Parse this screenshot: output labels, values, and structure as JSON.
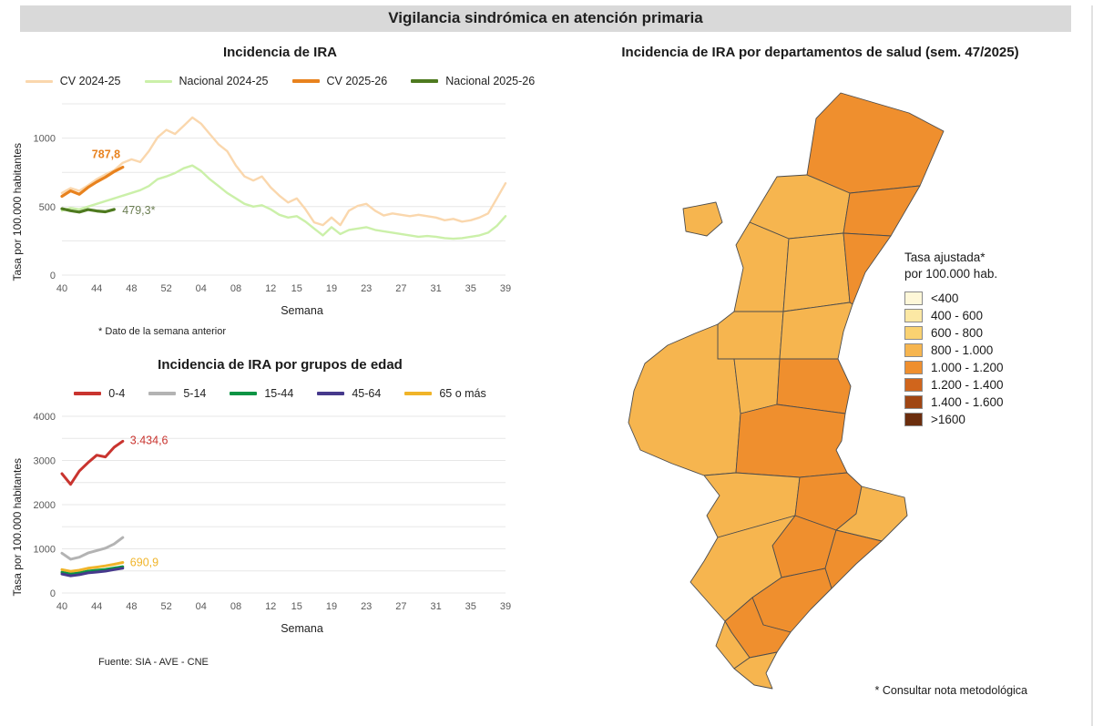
{
  "header": {
    "title": "Vigilancia sindrómica en atención primaria"
  },
  "chart_data": [
    {
      "id": "ira_incidence",
      "type": "line",
      "title": "Incidencia de IRA",
      "xlabel": "Semana",
      "ylabel": "Tasa por 100.000 habitantes",
      "note": "* Dato de la semana anterior",
      "x_ticks": [
        "40",
        "44",
        "48",
        "52",
        "04",
        "08",
        "12",
        "15",
        "19",
        "23",
        "27",
        "31",
        "35",
        "39"
      ],
      "x_tick_positions": [
        0,
        4,
        8,
        12,
        16,
        20,
        24,
        27,
        31,
        35,
        39,
        43,
        47,
        51
      ],
      "n_points": 52,
      "ylim": [
        0,
        1250
      ],
      "y_ticks": [
        0,
        500,
        1000
      ],
      "grid_step": 250,
      "series": [
        {
          "name": "CV 2024-25",
          "color": "#FAD7AD",
          "width": 2.4,
          "values": [
            600,
            635,
            615,
            655,
            700,
            735,
            765,
            820,
            845,
            825,
            905,
            1005,
            1060,
            1030,
            1090,
            1150,
            1105,
            1030,
            955,
            905,
            800,
            720,
            690,
            720,
            640,
            580,
            530,
            560,
            480,
            385,
            365,
            420,
            365,
            470,
            505,
            520,
            470,
            435,
            450,
            440,
            430,
            440,
            430,
            420,
            400,
            410,
            390,
            400,
            420,
            450,
            560,
            670
          ]
        },
        {
          "name": "Nacional 2024-25",
          "color": "#CBF0A9",
          "width": 2.4,
          "values": [
            470,
            490,
            480,
            500,
            520,
            540,
            560,
            580,
            600,
            620,
            650,
            700,
            720,
            745,
            780,
            800,
            760,
            700,
            650,
            600,
            560,
            520,
            500,
            510,
            480,
            440,
            420,
            430,
            390,
            340,
            290,
            350,
            300,
            330,
            340,
            350,
            330,
            320,
            310,
            300,
            290,
            280,
            285,
            280,
            270,
            265,
            270,
            280,
            290,
            310,
            360,
            430
          ]
        },
        {
          "name": "CV 2025-26",
          "color": "#E8821E",
          "width": 3.2,
          "values": [
            575,
            615,
            590,
            640,
            680,
            715,
            755,
            787.8
          ],
          "label": {
            "text": "787,8",
            "color": "#E8821E",
            "bold": true,
            "dx": -34,
            "dy": -10
          }
        },
        {
          "name": "Nacional 2025-26",
          "color": "#4E7A1F",
          "width": 3.2,
          "values": [
            485,
            470,
            460,
            478,
            468,
            462,
            479.3
          ],
          "label": {
            "text": "479,3*",
            "color": "#6b7d52",
            "bold": false,
            "dx": 9,
            "dy": 5
          }
        }
      ]
    },
    {
      "id": "ira_age_groups",
      "type": "line",
      "title": "Incidencia de IRA por grupos de edad",
      "xlabel": "Semana",
      "ylabel": "Tasa por 100.000 habitantes",
      "source": "Fuente: SIA - AVE - CNE",
      "x_ticks": [
        "40",
        "44",
        "48",
        "52",
        "04",
        "08",
        "12",
        "15",
        "19",
        "23",
        "27",
        "31",
        "35",
        "39"
      ],
      "x_tick_positions": [
        0,
        4,
        8,
        12,
        16,
        20,
        24,
        27,
        31,
        35,
        39,
        43,
        47,
        51
      ],
      "n_points": 52,
      "ylim": [
        0,
        4000
      ],
      "y_ticks": [
        0,
        1000,
        2000,
        3000,
        4000
      ],
      "grid_step": 500,
      "series": [
        {
          "name": "0-4",
          "color": "#C9342F",
          "width": 3,
          "values": [
            2700,
            2460,
            2760,
            2950,
            3120,
            3080,
            3300,
            3434.6
          ],
          "label": {
            "text": "3.434,6",
            "color": "#C9342F",
            "bold": false,
            "dx": 8,
            "dy": 3
          }
        },
        {
          "name": "5-14",
          "color": "#B3B3B3",
          "width": 3,
          "values": [
            900,
            765,
            810,
            905,
            960,
            1015,
            1110,
            1255
          ]
        },
        {
          "name": "15-44",
          "color": "#0B9444",
          "width": 3,
          "values": [
            470,
            430,
            455,
            495,
            515,
            535,
            565,
            595
          ]
        },
        {
          "name": "45-64",
          "color": "#46398C",
          "width": 3,
          "values": [
            430,
            390,
            415,
            455,
            475,
            495,
            530,
            560
          ]
        },
        {
          "name": "65 o más",
          "color": "#F0B429",
          "width": 3,
          "values": [
            530,
            490,
            515,
            560,
            585,
            615,
            650,
            690.9
          ],
          "label": {
            "text": "690,9",
            "color": "#F0B429",
            "bold": false,
            "dx": 8,
            "dy": 4
          }
        }
      ]
    },
    {
      "id": "ira_map",
      "type": "choropleth",
      "title": "Incidencia de IRA por departamentos de salud (sem. 47/2025)",
      "legend_title_line1": "Tasa ajustada*",
      "legend_title_line2": "por 100.000 hab.",
      "note": "* Consultar nota metodológica",
      "legend": [
        {
          "label": "<400",
          "color": "#FEF7D8"
        },
        {
          "label": "400 - 600",
          "color": "#FCE8A4"
        },
        {
          "label": "600 - 800",
          "color": "#FAD271"
        },
        {
          "label": "800 - 1.000",
          "color": "#F6B54F"
        },
        {
          "label": "1.000 - 1.200",
          "color": "#EF8F2E"
        },
        {
          "label": "1.200 - 1.400",
          "color": "#D0651C"
        },
        {
          "label": "1.400 - 1.600",
          "color": "#A04613"
        },
        {
          "label": ">1600",
          "color": "#6B2D0D"
        }
      ],
      "departments": [
        {
          "id": "vinaros",
          "category": "1.000 - 1.200"
        },
        {
          "id": "castellon-nw",
          "category": "800 - 1.000"
        },
        {
          "id": "castellon-coast",
          "category": "1.000 - 1.200"
        },
        {
          "id": "interior-west",
          "category": "800 - 1.000"
        },
        {
          "id": "plana-interior",
          "category": "800 - 1.000"
        },
        {
          "id": "castellon-city",
          "category": "1.000 - 1.200"
        },
        {
          "id": "serrania",
          "category": "800 - 1.000"
        },
        {
          "id": "sagunto",
          "category": "800 - 1.000"
        },
        {
          "id": "ademuz",
          "category": "800 - 1.000"
        },
        {
          "id": "requena",
          "category": "800 - 1.000"
        },
        {
          "id": "camp-turia",
          "category": "800 - 1.000"
        },
        {
          "id": "valencia-coast",
          "category": "1.000 - 1.200"
        },
        {
          "id": "ribera",
          "category": "1.000 - 1.200"
        },
        {
          "id": "xativa",
          "category": "800 - 1.000"
        },
        {
          "id": "gandia",
          "category": "1.000 - 1.200"
        },
        {
          "id": "denia",
          "category": "800 - 1.000"
        },
        {
          "id": "alcoi",
          "category": "1.000 - 1.200"
        },
        {
          "id": "marina-baixa",
          "category": "1.000 - 1.200"
        },
        {
          "id": "villena-elda",
          "category": "800 - 1.000"
        },
        {
          "id": "alacant",
          "category": "1.000 - 1.200"
        },
        {
          "id": "elx",
          "category": "1.000 - 1.200"
        },
        {
          "id": "orihuela",
          "category": "800 - 1.000"
        },
        {
          "id": "torrevieja",
          "category": "800 - 1.000"
        }
      ]
    }
  ]
}
